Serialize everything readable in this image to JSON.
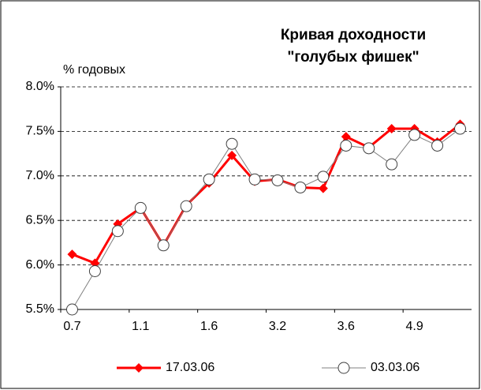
{
  "chart_data": {
    "type": "line",
    "title": [
      "Кривая доходности",
      "\"голубых фишек\""
    ],
    "y_label": "% годовых",
    "categories": [
      "0.7",
      null,
      null,
      "1.1",
      null,
      null,
      "1.6",
      null,
      null,
      "3.2",
      null,
      null,
      "3.6",
      null,
      null,
      "4.9",
      null,
      null
    ],
    "series": [
      {
        "name": "17.03.06",
        "color": "#ff0000",
        "values": [
          6.12,
          6.02,
          6.46,
          6.64,
          6.22,
          6.67,
          6.92,
          7.23,
          6.94,
          6.96,
          6.87,
          6.86,
          7.44,
          7.32,
          7.53,
          7.53,
          7.38,
          7.58
        ]
      },
      {
        "name": "03.03.06",
        "color": "#808080",
        "values": [
          5.5,
          5.93,
          6.38,
          6.64,
          6.22,
          6.66,
          6.96,
          7.36,
          6.96,
          6.95,
          6.87,
          6.99,
          7.34,
          7.31,
          7.13,
          7.46,
          7.34,
          7.53
        ]
      }
    ],
    "ylim": [
      5.5,
      8.0
    ],
    "yticks": [
      {
        "value": 5.5,
        "label": "5.5%"
      },
      {
        "value": 6.0,
        "label": "6.0%"
      },
      {
        "value": 6.5,
        "label": "6.5%"
      },
      {
        "value": 7.0,
        "label": "7.0%"
      },
      {
        "value": 7.5,
        "label": "7.5%"
      },
      {
        "value": 8.0,
        "label": "8.0%"
      }
    ],
    "grid": true,
    "legend": "bottom"
  }
}
